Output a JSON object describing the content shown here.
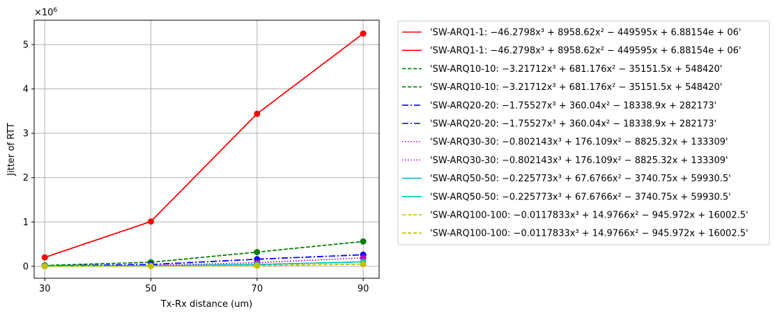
{
  "chart_data": {
    "type": "line",
    "title": "",
    "xlabel": "Tx-Rx distance (um)",
    "ylabel": "Jitter of RTT",
    "y_scale_label": "×10^6",
    "x": [
      30,
      50,
      70,
      90
    ],
    "x_ticks": [
      "30",
      "50",
      "70",
      "90"
    ],
    "y_ticks": [
      "0",
      "1",
      "2",
      "3",
      "4",
      "5"
    ],
    "xlim": [
      28,
      93
    ],
    "ylim": [
      -0.27,
      5.55
    ],
    "grid": true,
    "legend_position": "outside-right",
    "series": [
      {
        "name": "'SW-ARQ1-1: −46.2798x³ + 8958.62x² − 449595x + 6.88154e + 06'",
        "values": [
          0.2,
          1.01,
          3.44,
          5.25
        ],
        "color": "#ff0000",
        "dash": "solid",
        "markers": true
      },
      {
        "name": "'SW-ARQ1-1: −46.2798x³ + 8958.62x² − 449595x + 6.88154e + 06'",
        "values": [
          0.2,
          1.01,
          3.44,
          5.25
        ],
        "color": "#ff0000",
        "dash": "solid",
        "markers": false
      },
      {
        "name": "'SW-ARQ10-10: −3.21712x³ + 681.176x² − 35151.5x + 548420'",
        "values": [
          0.02,
          0.09,
          0.32,
          0.56
        ],
        "color": "#008000",
        "dash": "dashed",
        "markers": true
      },
      {
        "name": "'SW-ARQ10-10: −3.21712x³ + 681.176x² − 35151.5x + 548420'",
        "values": [
          0.02,
          0.09,
          0.32,
          0.56
        ],
        "color": "#008000",
        "dash": "dashed",
        "markers": false
      },
      {
        "name": "'SW-ARQ20-20: −1.75527x³ + 360.04x² − 18338.9x + 282173'",
        "values": [
          0.01,
          0.04,
          0.16,
          0.26
        ],
        "color": "#0000ff",
        "dash": "dashdot",
        "markers": true
      },
      {
        "name": "'SW-ARQ20-20: −1.75527x³ + 360.04x² − 18338.9x + 282173'",
        "values": [
          0.01,
          0.04,
          0.16,
          0.26
        ],
        "color": "#0000ff",
        "dash": "dashdot",
        "markers": false
      },
      {
        "name": "'SW-ARQ30-30: −0.802143x³ + 176.109x² − 8825.32x + 133309'",
        "values": [
          0.005,
          0.02,
          0.08,
          0.19
        ],
        "color": "#bf00bf",
        "dash": "dotted",
        "markers": true
      },
      {
        "name": "'SW-ARQ30-30: −0.802143x³ + 176.109x² − 8825.32x + 133309'",
        "values": [
          0.005,
          0.02,
          0.08,
          0.19
        ],
        "color": "#bf00bf",
        "dash": "dotted",
        "markers": false
      },
      {
        "name": "'SW-ARQ50-50: −0.225773x³ + 67.6766x² − 3740.75x + 59930.5'",
        "values": [
          0.003,
          0.01,
          0.04,
          0.1
        ],
        "color": "#00bfbf",
        "dash": "solid",
        "markers": true
      },
      {
        "name": "'SW-ARQ50-50: −0.225773x³ + 67.6766x² − 3740.75x + 59930.5'",
        "values": [
          0.003,
          0.01,
          0.04,
          0.1
        ],
        "color": "#00bfbf",
        "dash": "solid",
        "markers": false
      },
      {
        "name": "'SW-ARQ100-100: −0.0117833x³ + 14.9766x² − 945.972x + 16002.5'",
        "values": [
          0.001,
          0.004,
          0.015,
          0.05
        ],
        "color": "#bfbf00",
        "dash": "dashed",
        "markers": true
      },
      {
        "name": "'SW-ARQ100-100: −0.0117833x³ + 14.9766x² − 945.972x + 16002.5'",
        "values": [
          0.001,
          0.004,
          0.015,
          0.05
        ],
        "color": "#bfbf00",
        "dash": "dashed",
        "markers": false
      }
    ]
  }
}
